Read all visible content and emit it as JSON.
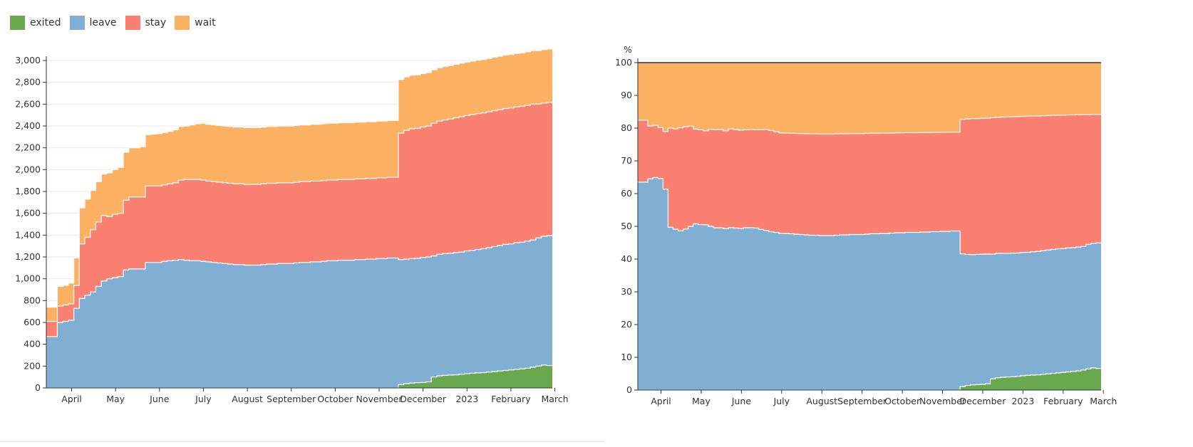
{
  "legend": [
    {
      "label": "exited",
      "color": "#6aa84f"
    },
    {
      "label": "leave",
      "color": "#80afd3"
    },
    {
      "label": "stay",
      "color": "#fa8072"
    },
    {
      "label": "wait",
      "color": "#fbb161"
    }
  ],
  "chart_data": [
    {
      "type": "area",
      "stacked": true,
      "step": true,
      "ylim": [
        0,
        3000
      ],
      "yticks": [
        0,
        200,
        400,
        600,
        800,
        1000,
        1200,
        1400,
        1600,
        1800,
        2000,
        2200,
        2400,
        2600,
        2800,
        3000
      ],
      "grid": true,
      "xlabels": [
        "April",
        "May",
        "June",
        "July",
        "August",
        "September",
        "October",
        "November",
        "December",
        "2023",
        "February",
        "March"
      ],
      "series": [
        {
          "name": "exited",
          "values": [
            0,
            0,
            0,
            0,
            0,
            0,
            0,
            0,
            0,
            0,
            0,
            0,
            0,
            0,
            0,
            0,
            0,
            0,
            0,
            0,
            0,
            0,
            0,
            0,
            0,
            0,
            0,
            0,
            0,
            0,
            0,
            0,
            0,
            0,
            0,
            0,
            0,
            0,
            0,
            0,
            0,
            0,
            0,
            0,
            0,
            0,
            0,
            0,
            0,
            0,
            0,
            0,
            0,
            0,
            0,
            0,
            0,
            0,
            0,
            0,
            0,
            0,
            0,
            0,
            30,
            40,
            45,
            48,
            50,
            55,
            100,
            110,
            115,
            118,
            120,
            125,
            130,
            135,
            138,
            140,
            145,
            150,
            155,
            160,
            165,
            170,
            175,
            180,
            190,
            200,
            210,
            205
          ]
        },
        {
          "name": "leave",
          "values": [
            470,
            470,
            600,
            610,
            620,
            730,
            820,
            850,
            880,
            930,
            980,
            1000,
            1010,
            1020,
            1080,
            1090,
            1090,
            1090,
            1150,
            1150,
            1150,
            1160,
            1165,
            1170,
            1175,
            1170,
            1165,
            1165,
            1160,
            1155,
            1150,
            1145,
            1140,
            1135,
            1130,
            1130,
            1125,
            1125,
            1125,
            1130,
            1135,
            1135,
            1140,
            1140,
            1140,
            1145,
            1150,
            1150,
            1155,
            1155,
            1160,
            1165,
            1165,
            1170,
            1170,
            1170,
            1175,
            1175,
            1180,
            1180,
            1185,
            1185,
            1190,
            1190,
            1145,
            1140,
            1140,
            1140,
            1145,
            1145,
            1110,
            1115,
            1115,
            1115,
            1120,
            1120,
            1125,
            1125,
            1130,
            1135,
            1140,
            1145,
            1150,
            1155,
            1155,
            1160,
            1160,
            1165,
            1165,
            1175,
            1180,
            1190
          ]
        },
        {
          "name": "stay",
          "values": [
            140,
            140,
            150,
            150,
            150,
            210,
            500,
            530,
            570,
            590,
            600,
            570,
            580,
            580,
            640,
            660,
            660,
            660,
            700,
            700,
            700,
            700,
            705,
            710,
            730,
            740,
            745,
            745,
            745,
            740,
            740,
            740,
            740,
            740,
            740,
            740,
            740,
            740,
            740,
            740,
            740,
            740,
            740,
            740,
            740,
            740,
            740,
            740,
            740,
            740,
            740,
            740,
            740,
            740,
            740,
            740,
            740,
            740,
            740,
            740,
            740,
            740,
            740,
            740,
            1160,
            1180,
            1190,
            1190,
            1195,
            1200,
            1215,
            1220,
            1225,
            1230,
            1235,
            1240,
            1240,
            1245,
            1245,
            1245,
            1245,
            1245,
            1245,
            1245,
            1245,
            1245,
            1245,
            1245,
            1245,
            1225,
            1220,
            1220
          ]
        },
        {
          "name": "wait",
          "values": [
            130,
            130,
            180,
            180,
            190,
            250,
            330,
            350,
            360,
            370,
            380,
            400,
            410,
            420,
            440,
            450,
            450,
            460,
            470,
            475,
            480,
            480,
            480,
            485,
            490,
            490,
            500,
            510,
            520,
            520,
            520,
            520,
            520,
            520,
            520,
            520,
            520,
            520,
            520,
            520,
            520,
            520,
            520,
            520,
            520,
            520,
            520,
            520,
            520,
            520,
            520,
            520,
            520,
            520,
            520,
            520,
            520,
            520,
            520,
            520,
            520,
            520,
            520,
            520,
            490,
            490,
            490,
            490,
            490,
            490,
            490,
            490,
            490,
            490,
            490,
            490,
            490,
            490,
            490,
            490,
            490,
            490,
            490,
            490,
            490,
            490,
            490,
            490,
            490,
            490,
            490,
            490
          ]
        }
      ]
    },
    {
      "type": "area",
      "stacked": true,
      "normalized": true,
      "step": true,
      "ylabel": "%",
      "ylim": [
        0,
        100
      ],
      "yticks": [
        0,
        10,
        20,
        30,
        40,
        50,
        60,
        70,
        80,
        90,
        100
      ],
      "xlabels": [
        "April",
        "May",
        "June",
        "July",
        "August",
        "September",
        "October",
        "November",
        "December",
        "2023",
        "February",
        "March"
      ]
    }
  ]
}
